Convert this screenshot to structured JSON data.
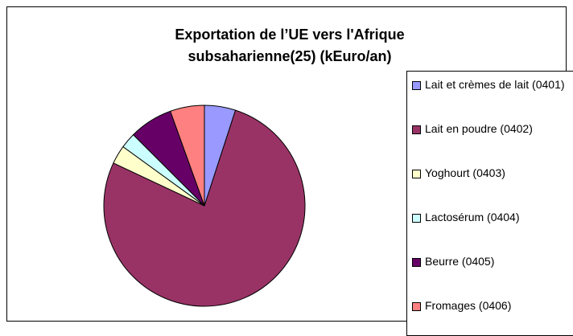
{
  "chart_data": {
    "type": "pie",
    "title": "Exportation de l’UE vers l'Afrique subsaharienne(25) (kEuro/an)",
    "categories": [
      "Lait et crèmes de lait (0401)",
      "Lait en poudre (0402)",
      "Yoghourt (0403)",
      "Lactosérum (0404)",
      " Beurre (0405)",
      "Fromages (0406)"
    ],
    "values": [
      5,
      77,
      3,
      2.5,
      7,
      5.5
    ],
    "colors": [
      "#9999ff",
      "#993366",
      "#ffffcc",
      "#ccffff",
      "#660066",
      "#ff8080"
    ],
    "legend": "right"
  }
}
